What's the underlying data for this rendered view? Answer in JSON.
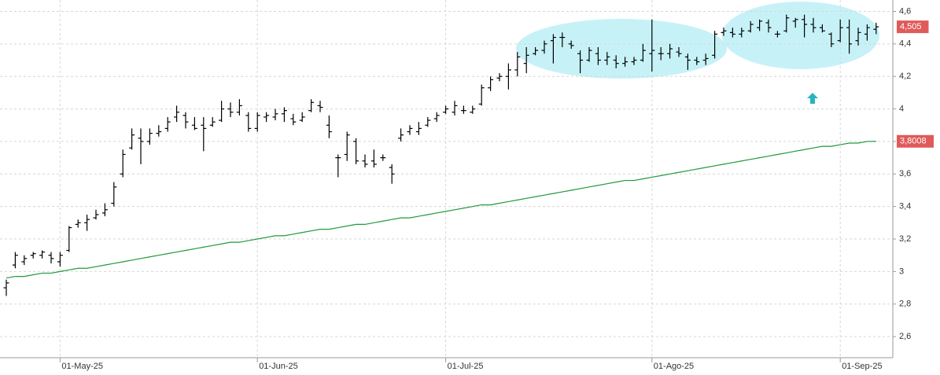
{
  "chart_data": {
    "type": "ohlc",
    "categories": [
      null,
      null,
      null,
      null,
      null,
      null,
      "01-May-25",
      null,
      null,
      null,
      null,
      null,
      null,
      null,
      null,
      null,
      null,
      null,
      null,
      null,
      null,
      null,
      null,
      null,
      null,
      null,
      null,
      null,
      "01-Jun-25",
      null,
      null,
      null,
      null,
      null,
      null,
      null,
      null,
      null,
      null,
      null,
      null,
      null,
      null,
      null,
      null,
      null,
      null,
      null,
      null,
      "01-Jul-25",
      null,
      null,
      null,
      null,
      null,
      null,
      null,
      null,
      null,
      null,
      null,
      null,
      null,
      null,
      null,
      null,
      null,
      null,
      null,
      null,
      null,
      null,
      "01-Ago-25",
      null,
      null,
      null,
      null,
      null,
      null,
      null,
      null,
      null,
      null,
      null,
      null,
      null,
      null,
      null,
      null,
      null,
      null,
      null,
      null,
      "01-Sep-25",
      null,
      null,
      null,
      null
    ],
    "ylim": [
      2.47,
      4.67
    ],
    "yticks": [
      {
        "value": 2.6,
        "label": "2,6"
      },
      {
        "value": 2.8,
        "label": "2,8"
      },
      3,
      {
        "value": 3.2,
        "label": "3,2"
      },
      {
        "value": 3.4,
        "label": "3,4"
      },
      {
        "value": 3.6,
        "label": "3,6"
      },
      {
        "value": 3.8,
        "label": "3,8"
      },
      4,
      {
        "value": 4.2,
        "label": "4,2"
      },
      {
        "value": 4.4,
        "label": "4,4"
      },
      {
        "value": 4.6,
        "label": "4,6"
      }
    ],
    "grid": true,
    "series": [
      {
        "type": "ohlc",
        "color": "#000000",
        "tag_color": "#e05a5a",
        "last_label": "4,505",
        "open": [
          2.9,
          3.04,
          3.06,
          3.1,
          3.1,
          3.1,
          3.06,
          3.13,
          3.29,
          3.3,
          3.33,
          3.36,
          3.42,
          3.6,
          3.76,
          3.82,
          3.8,
          3.85,
          3.88,
          3.95,
          3.96,
          3.9,
          3.9,
          3.9,
          3.93,
          4.0,
          3.98,
          3.96,
          3.88,
          3.95,
          3.95,
          3.97,
          3.94,
          3.93,
          3.99,
          4.02,
          3.9,
          3.7,
          3.72,
          3.8,
          3.68,
          3.68,
          3.7,
          3.64,
          3.82,
          3.86,
          3.86,
          3.9,
          3.94,
          3.98,
          3.98,
          3.99,
          3.98,
          4.03,
          4.13,
          4.19,
          4.2,
          4.24,
          4.28,
          4.34,
          4.36,
          4.42,
          4.44,
          4.4,
          4.34,
          4.3,
          4.34,
          4.3,
          4.3,
          4.28,
          4.29,
          4.3,
          4.34,
          4.34,
          4.34,
          4.35,
          4.32,
          4.3,
          4.3,
          4.33,
          4.47,
          4.47,
          4.46,
          4.48,
          4.5,
          4.53,
          4.46,
          4.48,
          4.54,
          4.55,
          4.52,
          4.5,
          4.46,
          4.42,
          4.5,
          4.42,
          4.46,
          4.49
        ],
        "high": [
          2.95,
          3.12,
          3.1,
          3.12,
          3.13,
          3.12,
          3.12,
          3.28,
          3.32,
          3.35,
          3.38,
          3.42,
          3.55,
          3.75,
          3.88,
          3.88,
          3.88,
          3.9,
          3.95,
          4.02,
          3.98,
          3.95,
          3.95,
          3.95,
          4.05,
          4.04,
          4.06,
          3.98,
          3.98,
          3.98,
          4.0,
          4.01,
          3.97,
          3.98,
          4.06,
          4.05,
          3.96,
          3.72,
          3.86,
          3.82,
          3.72,
          3.75,
          3.72,
          3.66,
          3.88,
          3.9,
          3.92,
          3.95,
          3.98,
          4.02,
          4.05,
          4.02,
          4.02,
          4.15,
          4.2,
          4.22,
          4.28,
          4.35,
          4.38,
          4.38,
          4.42,
          4.46,
          4.47,
          4.42,
          4.36,
          4.38,
          4.38,
          4.35,
          4.33,
          4.32,
          4.32,
          4.4,
          4.55,
          4.38,
          4.4,
          4.38,
          4.34,
          4.32,
          4.34,
          4.48,
          4.5,
          4.5,
          4.5,
          4.54,
          4.55,
          4.55,
          4.48,
          4.58,
          4.56,
          4.58,
          4.56,
          4.52,
          4.47,
          4.55,
          4.55,
          4.5,
          4.52,
          4.53
        ],
        "low": [
          2.85,
          3.02,
          3.04,
          3.08,
          3.08,
          3.05,
          3.03,
          3.12,
          3.27,
          3.25,
          3.32,
          3.34,
          3.4,
          3.58,
          3.75,
          3.66,
          3.78,
          3.83,
          3.86,
          3.92,
          3.88,
          3.87,
          3.74,
          3.89,
          3.92,
          3.95,
          3.96,
          3.86,
          3.86,
          3.92,
          3.93,
          3.92,
          3.9,
          3.92,
          3.98,
          3.98,
          3.82,
          3.58,
          3.68,
          3.66,
          3.64,
          3.64,
          3.68,
          3.54,
          3.8,
          3.84,
          3.84,
          3.89,
          3.92,
          3.97,
          3.96,
          3.97,
          3.97,
          4.02,
          4.11,
          4.17,
          4.12,
          4.2,
          4.22,
          4.33,
          4.34,
          4.28,
          4.38,
          4.37,
          4.22,
          4.29,
          4.27,
          4.27,
          4.25,
          4.26,
          4.27,
          4.29,
          4.23,
          4.3,
          4.31,
          4.32,
          4.24,
          4.27,
          4.27,
          4.31,
          4.45,
          4.44,
          4.44,
          4.47,
          4.48,
          4.47,
          4.44,
          4.47,
          4.5,
          4.44,
          4.47,
          4.47,
          4.38,
          4.41,
          4.34,
          4.39,
          4.42,
          4.46
        ],
        "close": [
          2.93,
          3.1,
          3.08,
          3.11,
          3.12,
          3.08,
          3.1,
          3.27,
          3.3,
          3.32,
          3.35,
          3.38,
          3.52,
          3.72,
          3.84,
          3.8,
          3.85,
          3.86,
          3.92,
          3.98,
          3.92,
          3.88,
          3.88,
          3.92,
          4.0,
          3.98,
          4.02,
          3.88,
          3.96,
          3.96,
          3.97,
          3.99,
          3.92,
          3.95,
          4.04,
          4.01,
          3.86,
          3.7,
          3.84,
          3.68,
          3.66,
          3.66,
          3.7,
          3.6,
          3.84,
          3.88,
          3.88,
          3.93,
          3.96,
          4.0,
          4.02,
          3.99,
          4.0,
          4.13,
          4.18,
          4.2,
          4.24,
          4.32,
          4.33,
          4.36,
          4.4,
          4.44,
          4.44,
          4.39,
          4.3,
          4.36,
          4.3,
          4.32,
          4.28,
          4.29,
          4.3,
          4.36,
          4.36,
          4.34,
          4.37,
          4.34,
          4.3,
          4.29,
          4.31,
          4.46,
          4.48,
          4.46,
          4.48,
          4.52,
          4.54,
          4.5,
          4.46,
          4.56,
          4.55,
          4.52,
          4.5,
          4.48,
          4.4,
          4.5,
          4.4,
          4.47,
          4.5,
          4.505
        ]
      },
      {
        "type": "line",
        "color": "#1f9a3c",
        "tag_color": "#e05a5a",
        "last_label": "3,8008",
        "values": [
          2.96,
          2.97,
          2.97,
          2.98,
          2.99,
          2.99,
          3.0,
          3.01,
          3.02,
          3.02,
          3.03,
          3.04,
          3.05,
          3.06,
          3.07,
          3.08,
          3.09,
          3.1,
          3.11,
          3.12,
          3.13,
          3.14,
          3.15,
          3.16,
          3.17,
          3.18,
          3.18,
          3.19,
          3.2,
          3.21,
          3.22,
          3.22,
          3.23,
          3.24,
          3.25,
          3.26,
          3.26,
          3.27,
          3.28,
          3.29,
          3.29,
          3.3,
          3.31,
          3.32,
          3.33,
          3.33,
          3.34,
          3.35,
          3.36,
          3.37,
          3.38,
          3.39,
          3.4,
          3.41,
          3.41,
          3.42,
          3.43,
          3.44,
          3.45,
          3.46,
          3.47,
          3.48,
          3.49,
          3.5,
          3.51,
          3.52,
          3.53,
          3.54,
          3.55,
          3.56,
          3.56,
          3.57,
          3.58,
          3.59,
          3.6,
          3.61,
          3.62,
          3.63,
          3.64,
          3.65,
          3.66,
          3.67,
          3.68,
          3.69,
          3.7,
          3.71,
          3.72,
          3.73,
          3.74,
          3.75,
          3.76,
          3.77,
          3.77,
          3.78,
          3.79,
          3.79,
          3.8,
          3.8008
        ]
      }
    ]
  }
}
